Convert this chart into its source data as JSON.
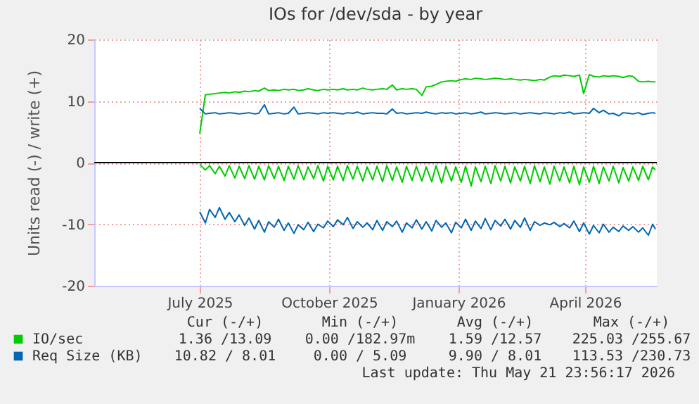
{
  "chart_data": {
    "type": "line",
    "title": "IOs for /dev/sda - by year",
    "ylabel": "Units read (-) / write (+)",
    "x": [
      "2025-07-01",
      "2025-07-05",
      "2025-07-08",
      "2025-07-12",
      "2025-07-15",
      "2025-07-19",
      "2025-07-22",
      "2025-07-26",
      "2025-07-29",
      "2025-08-02",
      "2025-08-05",
      "2025-08-09",
      "2025-08-12",
      "2025-08-16",
      "2025-08-19",
      "2025-08-23",
      "2025-08-26",
      "2025-08-30",
      "2025-09-02",
      "2025-09-06",
      "2025-09-09",
      "2025-09-13",
      "2025-09-16",
      "2025-09-20",
      "2025-09-23",
      "2025-09-27",
      "2025-09-30",
      "2025-10-04",
      "2025-10-07",
      "2025-10-11",
      "2025-10-14",
      "2025-10-18",
      "2025-10-21",
      "2025-10-25",
      "2025-10-28",
      "2025-11-01",
      "2025-11-04",
      "2025-11-08",
      "2025-11-11",
      "2025-11-15",
      "2025-11-18",
      "2025-11-22",
      "2025-11-25",
      "2025-11-29",
      "2025-12-02",
      "2025-12-06",
      "2025-12-09",
      "2025-12-13",
      "2025-12-16",
      "2025-12-20",
      "2025-12-23",
      "2025-12-27",
      "2025-12-30",
      "2026-01-03",
      "2026-01-06",
      "2026-01-10",
      "2026-01-13",
      "2026-01-17",
      "2026-01-20",
      "2026-01-24",
      "2026-01-27",
      "2026-01-31",
      "2026-02-03",
      "2026-02-07",
      "2026-02-10",
      "2026-02-14",
      "2026-02-17",
      "2026-02-21",
      "2026-02-24",
      "2026-02-28",
      "2026-03-03",
      "2026-03-07",
      "2026-03-10",
      "2026-03-14",
      "2026-03-17",
      "2026-03-21",
      "2026-03-24",
      "2026-03-28",
      "2026-03-31",
      "2026-04-04",
      "2026-04-07",
      "2026-04-11",
      "2026-04-14",
      "2026-04-18",
      "2026-04-21",
      "2026-04-25",
      "2026-04-28",
      "2026-05-02",
      "2026-05-05",
      "2026-05-09",
      "2026-05-12",
      "2026-05-16",
      "2026-05-19",
      "2026-05-21"
    ],
    "series": [
      {
        "name": "IO/sec",
        "color": "#00cc00",
        "values": [
          4.7,
          11.0,
          11.1,
          11.2,
          11.3,
          11.4,
          11.3,
          11.5,
          11.4,
          11.6,
          11.5,
          11.7,
          11.6,
          12.1,
          11.7,
          11.8,
          11.7,
          11.9,
          11.8,
          11.9,
          11.7,
          11.8,
          12.0,
          11.8,
          11.7,
          11.9,
          11.8,
          11.9,
          11.8,
          12.0,
          11.8,
          11.9,
          11.8,
          12.1,
          11.9,
          11.8,
          11.9,
          12.0,
          11.9,
          12.6,
          11.8,
          12.0,
          11.9,
          12.0,
          11.9,
          10.9,
          12.3,
          12.4,
          12.7,
          13.1,
          13.2,
          13.3,
          13.2,
          13.5,
          13.6,
          13.5,
          13.7,
          13.6,
          13.5,
          13.6,
          13.7,
          13.6,
          13.5,
          13.6,
          13.5,
          13.4,
          13.5,
          13.4,
          13.3,
          13.5,
          13.4,
          13.9,
          14.1,
          14.0,
          14.2,
          14.1,
          14.0,
          14.2,
          11.2,
          14.3,
          14.0,
          13.9,
          14.1,
          14.0,
          14.1,
          14.0,
          13.8,
          14.1,
          14.0,
          13.2,
          13.1,
          13.2,
          13.1,
          13.1
        ]
      },
      {
        "color": "#00cc00",
        "values": [
          -0.3,
          -1.2,
          -0.5,
          -1.8,
          -0.6,
          -2.2,
          -0.5,
          -2.5,
          -0.6,
          -2.6,
          -0.5,
          -2.7,
          -0.6,
          -2.8,
          -0.5,
          -2.6,
          -0.6,
          -2.9,
          -0.6,
          -2.7,
          -0.5,
          -2.8,
          -0.7,
          -2.6,
          -0.5,
          -3.0,
          -0.6,
          -2.8,
          -0.6,
          -2.9,
          -0.5,
          -2.7,
          -0.6,
          -3.0,
          -0.7,
          -2.8,
          -0.6,
          -3.1,
          -0.5,
          -2.9,
          -0.7,
          -3.2,
          -0.6,
          -2.9,
          -0.6,
          -3.0,
          -0.7,
          -3.1,
          -0.5,
          -3.3,
          -0.6,
          -3.0,
          -0.7,
          -3.2,
          -0.6,
          -3.8,
          -0.7,
          -3.1,
          -0.6,
          -3.4,
          -0.5,
          -3.0,
          -0.6,
          -3.3,
          -0.7,
          -3.0,
          -0.6,
          -3.4,
          -0.5,
          -3.1,
          -0.7,
          -3.5,
          -0.6,
          -3.0,
          -0.7,
          -3.3,
          -0.6,
          -3.6,
          -0.7,
          -3.2,
          -0.6,
          -3.4,
          -0.7,
          -3.0,
          -0.6,
          -3.3,
          -0.8,
          -3.0,
          -0.7,
          -2.9,
          -0.6,
          -2.8,
          -0.7,
          -1.2
        ]
      },
      {
        "name": "Req Size (KB)",
        "color": "#0066b3",
        "values": [
          8.8,
          7.9,
          8.0,
          8.1,
          7.9,
          8.0,
          8.1,
          8.0,
          7.9,
          8.0,
          8.1,
          7.9,
          8.0,
          9.4,
          7.9,
          8.0,
          8.1,
          7.9,
          8.0,
          9.0,
          7.9,
          8.0,
          8.1,
          8.0,
          7.9,
          8.1,
          8.0,
          8.1,
          8.0,
          7.9,
          8.1,
          8.0,
          8.2,
          7.9,
          8.0,
          8.1,
          8.0,
          8.0,
          7.9,
          8.7,
          8.0,
          8.1,
          7.9,
          8.0,
          8.1,
          8.0,
          8.2,
          8.0,
          7.9,
          8.1,
          8.0,
          8.1,
          7.9,
          8.0,
          8.1,
          7.9,
          8.0,
          8.2,
          7.9,
          8.0,
          8.1,
          8.0,
          7.9,
          8.0,
          8.1,
          7.9,
          8.0,
          8.1,
          8.0,
          7.9,
          8.1,
          8.0,
          7.9,
          8.1,
          8.0,
          8.2,
          7.9,
          8.0,
          8.1,
          8.0,
          8.8,
          8.1,
          8.5,
          7.9,
          8.0,
          7.6,
          8.1,
          8.0,
          7.9,
          8.1,
          7.8,
          8.0,
          8.1,
          8.0
        ]
      },
      {
        "color": "#0066b3",
        "values": [
          -8.0,
          -9.8,
          -7.6,
          -8.9,
          -7.3,
          -9.2,
          -8.1,
          -9.6,
          -8.5,
          -10.2,
          -9.0,
          -10.8,
          -9.4,
          -11.3,
          -9.6,
          -10.5,
          -9.2,
          -11.0,
          -9.8,
          -11.5,
          -10.1,
          -10.9,
          -9.7,
          -11.2,
          -10.0,
          -10.6,
          -9.5,
          -10.4,
          -9.3,
          -10.1,
          -8.9,
          -10.7,
          -9.6,
          -10.5,
          -9.8,
          -10.9,
          -9.4,
          -11.0,
          -9.6,
          -10.4,
          -9.5,
          -11.3,
          -9.8,
          -10.6,
          -9.3,
          -10.8,
          -9.6,
          -11.1,
          -9.4,
          -10.5,
          -9.8,
          -11.4,
          -9.7,
          -10.6,
          -9.2,
          -11.0,
          -9.5,
          -10.7,
          -9.1,
          -10.9,
          -9.4,
          -10.3,
          -9.2,
          -10.8,
          -9.4,
          -10.5,
          -9.0,
          -11.0,
          -9.6,
          -10.2,
          -9.8,
          -10.1,
          -9.7,
          -10.4,
          -9.9,
          -10.6,
          -9.5,
          -11.2,
          -9.8,
          -11.6,
          -10.2,
          -11.4,
          -10.0,
          -11.3,
          -10.5,
          -11.2,
          -10.3,
          -11.0,
          -10.4,
          -11.3,
          -10.6,
          -11.8,
          -10.0,
          -10.8
        ]
      }
    ],
    "xlim": [
      "2025-04-17",
      "2026-05-22"
    ],
    "xticks": [
      {
        "value": "2025-07-01",
        "label": "July 2025"
      },
      {
        "value": "2025-10-01",
        "label": "October 2025"
      },
      {
        "value": "2026-01-01",
        "label": "January 2026"
      },
      {
        "value": "2026-04-01",
        "label": "April 2026"
      }
    ],
    "ylim": [
      -20,
      20
    ],
    "yticks": [
      -20,
      -10,
      0,
      10,
      20
    ],
    "grid": true,
    "legend": "bottom",
    "ref_lines": [
      {
        "axis": "y",
        "value": 0,
        "color": "#000000"
      }
    ],
    "annotations": [
      "Cur (-/+)",
      "Min (-/+)",
      "Avg (-/+)",
      "Max (-/+)",
      "1.36 /13.09",
      "0.00 /182.97m",
      "1.59 /12.57",
      "225.03 /255.67",
      "10.82 / 8.01",
      "0.00 / 5.09",
      "9.90 / 8.01",
      "113.53 /230.73",
      "Last update: Thu May 21 23:56:17 2026"
    ]
  }
}
